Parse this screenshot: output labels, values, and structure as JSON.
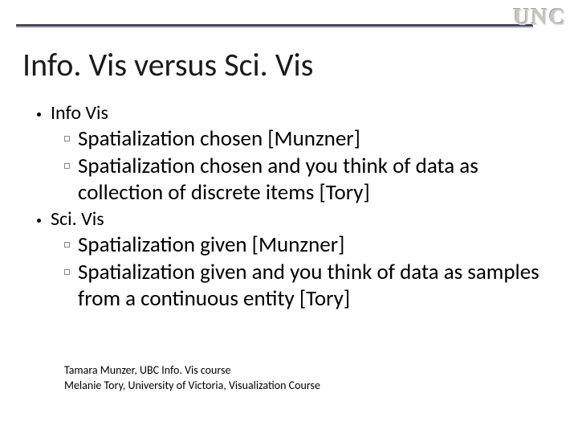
{
  "logo": "UNC",
  "title": "Info. Vis versus Sci. Vis",
  "sections": [
    {
      "heading": "Info Vis",
      "items": [
        "Spatialization chosen [Munzner]",
        "Spatialization chosen and you think of data as collection of discrete items [Tory]"
      ]
    },
    {
      "heading": "Sci. Vis",
      "items": [
        "Spatialization given [Munzner]",
        "Spatialization given and you think of data as samples from a continuous entity [Tory]"
      ]
    }
  ],
  "references": [
    "Tamara Munzer, UBC Info. Vis course",
    "Melanie Tory, University of Victoria, Visualization Course"
  ],
  "colors": {
    "rule_dark": "#4a4a55",
    "rule_light": "#c9c9d4",
    "logo": "#c8c6c2",
    "text": "#000000",
    "background": "#ffffff"
  }
}
